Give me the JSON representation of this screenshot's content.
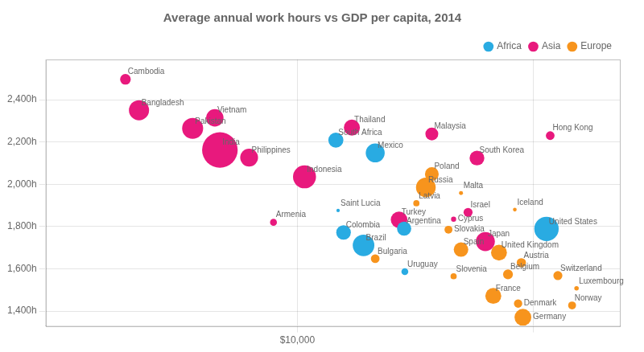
{
  "chart_data": {
    "type": "bubble",
    "title": "Average annual work hours vs GDP per capita, 2014",
    "log": "x",
    "xlim": [
      1800,
      90000
    ],
    "xticks": [
      {
        "value": 10000,
        "label": "$10,000"
      }
    ],
    "vlines": [
      10000,
      50000
    ],
    "ylim": [
      1330,
      2590
    ],
    "yticks": [
      {
        "value": 1400,
        "label": "1,400h"
      },
      {
        "value": 1600,
        "label": "1,600h"
      },
      {
        "value": 1800,
        "label": "1,800h"
      },
      {
        "value": 2000,
        "label": "2,000h"
      },
      {
        "value": 2200,
        "label": "2,200h"
      },
      {
        "value": 2400,
        "label": "2,400h"
      }
    ],
    "grid": true,
    "legend": "upper right",
    "series": [
      {
        "name": "Africa",
        "color": "#29abe2",
        "labels": [
          "South Africa",
          "Saint Lucia",
          "Colombia",
          "Mexico",
          "Brazil",
          "Uruguay",
          "Argentina",
          "United States"
        ],
        "x": [
          13000,
          13200,
          13700,
          17000,
          15700,
          20800,
          20700,
          54600
        ],
        "values": [
          2209,
          1876,
          1772,
          2148,
          1711,
          1587,
          1790,
          1789
        ],
        "sizes": [
          54,
          0.18,
          48,
          125,
          204,
          3,
          43,
          320
        ]
      },
      {
        "name": "Asia",
        "color": "#e8197d",
        "labels": [
          "Cambodia",
          "Bangladesh",
          "Vietnam",
          "Pakistan",
          "India",
          "Philippines",
          "Thailand",
          "Malaysia",
          "Hong Kong",
          "South Korea",
          "Indonesia",
          "Israel",
          "Cyprus",
          "Japan",
          "Armenia",
          "Turkey"
        ],
        "x": [
          3100,
          3400,
          5700,
          4900,
          5900,
          7200,
          14500,
          25000,
          56000,
          34000,
          10500,
          32000,
          29000,
          36000,
          8500,
          20000
        ],
        "values": [
          2496,
          2350,
          2314,
          2264,
          2162,
          2126,
          2268,
          2238,
          2230,
          2124,
          2035,
          1867,
          1835,
          1729,
          1820,
          1832
        ],
        "sizes": [
          15,
          157,
          91,
          185,
          1295,
          100,
          68,
          30,
          7,
          50,
          257,
          8,
          1,
          127,
          3,
          77
        ]
      },
      {
        "name": "Europe",
        "color": "#f7941d",
        "labels": [
          "Spain",
          "Bulgaria",
          "Russia",
          "Poland",
          "Latvia",
          "Malta",
          "Slovakia",
          "Iceland",
          "United Kingdom",
          "Austria",
          "Belgium",
          "Switzerland",
          "France",
          "Slovenia",
          "Denmark",
          "Norway",
          "Germany",
          "Luxembourg"
        ],
        "x": [
          30500,
          17000,
          24000,
          25000,
          22500,
          30500,
          28000,
          44000,
          39500,
          46000,
          42000,
          59000,
          38000,
          29000,
          45000,
          65000,
          46500,
          67000
        ],
        "values": [
          1691,
          1648,
          1985,
          2048,
          1910,
          1958,
          1785,
          1880,
          1677,
          1629,
          1574,
          1568,
          1472,
          1565,
          1436,
          1427,
          1371,
          1508
        ],
        "sizes": [
          47,
          7,
          144,
          38,
          2,
          0.4,
          5,
          0.3,
          65,
          9,
          11,
          8,
          66,
          2,
          6,
          5,
          81,
          0.6
        ]
      }
    ]
  }
}
